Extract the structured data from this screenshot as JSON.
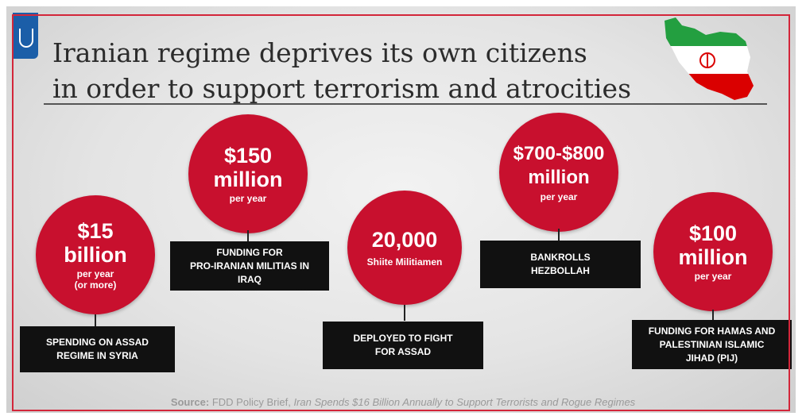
{
  "title": {
    "line1": "Iranian regime deprives its own citizens",
    "line2": "in order to support terrorism and atrocities"
  },
  "items": [
    {
      "amount_line1": "$15",
      "amount_line2": "billion",
      "sub_line1": "per year",
      "sub_line2": "(or more)",
      "label_line1": "SPENDING ON ASSAD",
      "label_line2": "REGIME IN SYRIA"
    },
    {
      "amount_line1": "$150",
      "amount_line2": "million",
      "sub_line1": "per year",
      "label_line1": "FUNDING FOR",
      "label_line2": "PRO-IRANIAN MILITIAS IN",
      "label_line3": "IRAQ"
    },
    {
      "amount_line1": "20,000",
      "sub_line1": "Shiite Militiamen",
      "label_line1": "DEPLOYED TO FIGHT",
      "label_line2": "FOR ASSAD"
    },
    {
      "amount_line1": "$700-$800",
      "amount_line2": "million",
      "sub_line1": "per year",
      "label_line1": "BANKROLLS",
      "label_line2": "HEZBOLLAH"
    },
    {
      "amount_line1": "$100",
      "amount_line2": "million",
      "sub_line1": "per year",
      "label_line1": "FUNDING FOR HAMAS AND",
      "label_line2": "PALESTINIAN ISLAMIC",
      "label_line3": "JIHAD (PIJ)"
    }
  ],
  "source": {
    "prefix": "Source:",
    "publisher": "FDD Policy Brief,",
    "report": "Iran Spends $16 Billion Annually to Support Terrorists and Rogue Regimes"
  },
  "icons": {
    "corner_logo": "shield-logo-icon",
    "map": "iran-flag-map-icon"
  },
  "colors": {
    "accent": "#c8102e",
    "label_bg": "#111111",
    "title": "#2c2c2c"
  }
}
